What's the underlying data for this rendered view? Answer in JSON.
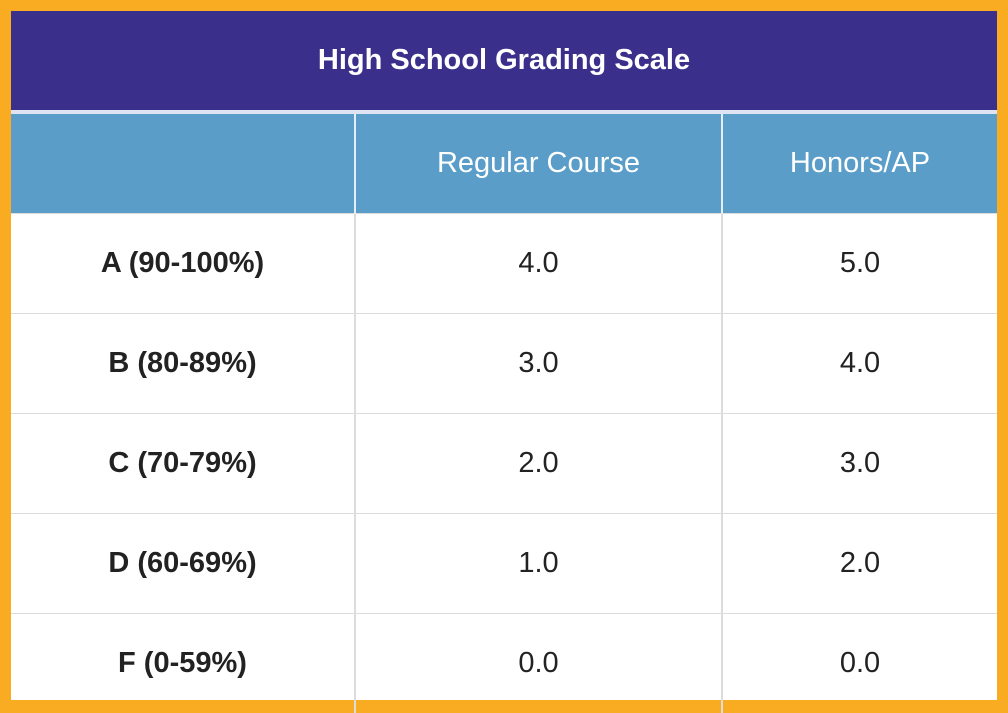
{
  "title": "High School Grading Scale",
  "columns": [
    "",
    "Regular Course",
    "Honors/AP"
  ],
  "rows": [
    {
      "grade": "A (90-100%)",
      "regular": "4.0",
      "honors": "5.0"
    },
    {
      "grade": "B (80-89%)",
      "regular": "3.0",
      "honors": "4.0"
    },
    {
      "grade": "C (70-79%)",
      "regular": "2.0",
      "honors": "3.0"
    },
    {
      "grade": "D (60-69%)",
      "regular": "1.0",
      "honors": "2.0"
    },
    {
      "grade": "F (0-59%)",
      "regular": "0.0",
      "honors": "0.0"
    }
  ],
  "colors": {
    "border": "#f9ab22",
    "title_bg": "#3a308c",
    "header_bg": "#5a9dc8"
  }
}
